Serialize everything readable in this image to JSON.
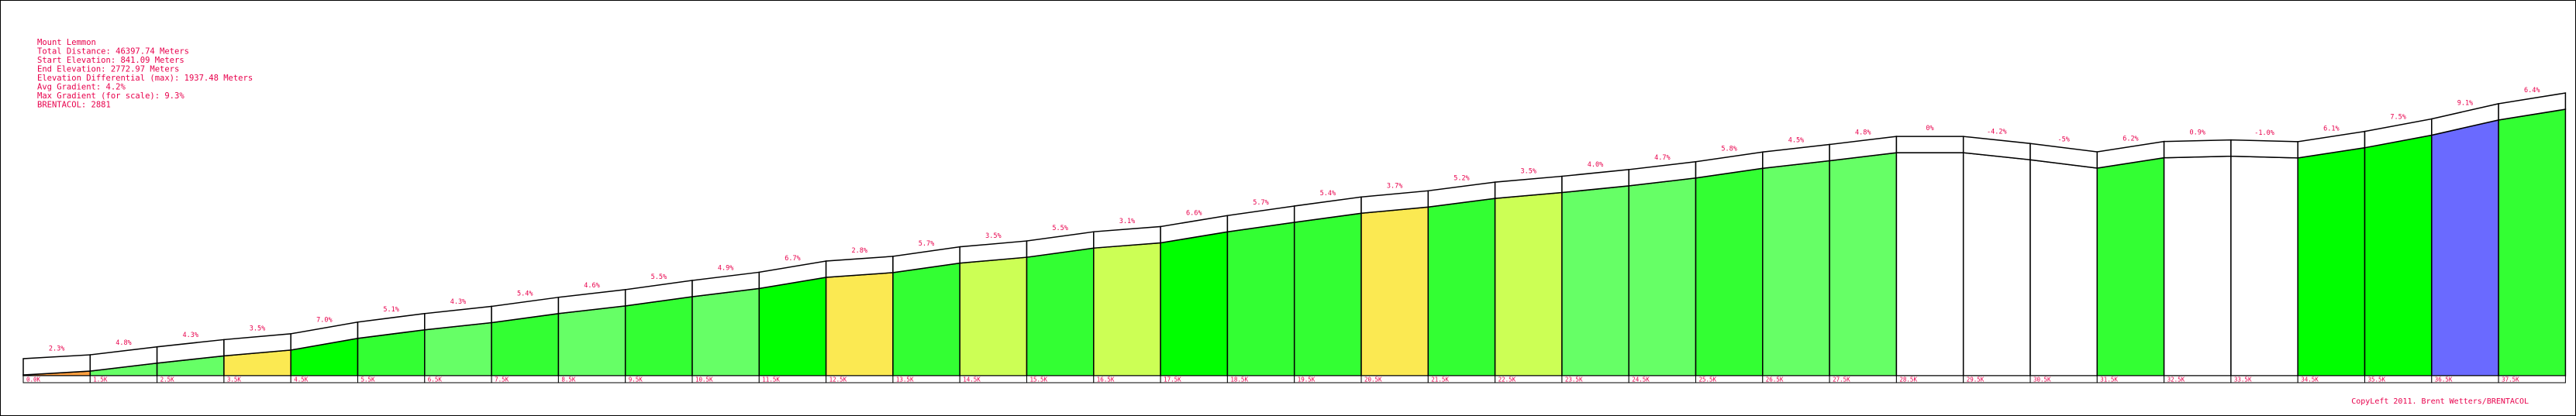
{
  "chart_data": {
    "type": "area",
    "info": [
      "Mount Lemmon",
      "Total Distance: 46397.74 Meters",
      "Start Elevation: 841.09 Meters",
      "End Elevation: 2772.97 Meters",
      "Elevation Differential (max): 1937.48 Meters",
      "Avg Gradient: 4.2%",
      "Max Gradient (for scale): 9.3%",
      "BRENTACOL: 2881"
    ],
    "segments": [
      {
        "label": "0.0K",
        "gradient": "2.3%",
        "color": "#ffa040"
      },
      {
        "label": "1.5K",
        "gradient": "4.8%",
        "color": "#66ff66"
      },
      {
        "label": "2.5K",
        "gradient": "4.3%",
        "color": "#66ff66"
      },
      {
        "label": "3.5K",
        "gradient": "3.5%",
        "color": "#fbe952"
      },
      {
        "label": "4.5K",
        "gradient": "7.0%",
        "color": "#00ff00"
      },
      {
        "label": "5.5K",
        "gradient": "5.1%",
        "color": "#33ff33"
      },
      {
        "label": "6.5K",
        "gradient": "4.3%",
        "color": "#66ff66"
      },
      {
        "label": "7.5K",
        "gradient": "5.4%",
        "color": "#33ff33"
      },
      {
        "label": "8.5K",
        "gradient": "4.6%",
        "color": "#66ff66"
      },
      {
        "label": "9.5K",
        "gradient": "5.5%",
        "color": "#33ff33"
      },
      {
        "label": "10.5K",
        "gradient": "4.9%",
        "color": "#66ff66"
      },
      {
        "label": "11.5K",
        "gradient": "6.7%",
        "color": "#00ff00"
      },
      {
        "label": "12.5K",
        "gradient": "2.8%",
        "color": "#fbe952"
      },
      {
        "label": "13.5K",
        "gradient": "5.7%",
        "color": "#33ff33"
      },
      {
        "label": "14.5K",
        "gradient": "3.5%",
        "color": "#ccff55"
      },
      {
        "label": "15.5K",
        "gradient": "5.5%",
        "color": "#33ff33"
      },
      {
        "label": "16.5K",
        "gradient": "3.1%",
        "color": "#ccff55"
      },
      {
        "label": "17.5K",
        "gradient": "6.6%",
        "color": "#00ff00"
      },
      {
        "label": "18.5K",
        "gradient": "5.7%",
        "color": "#33ff33"
      },
      {
        "label": "19.5K",
        "gradient": "5.4%",
        "color": "#33ff33"
      },
      {
        "label": "20.5K",
        "gradient": "3.7%",
        "color": "#fbe952"
      },
      {
        "label": "21.5K",
        "gradient": "5.2%",
        "color": "#33ff33"
      },
      {
        "label": "22.5K",
        "gradient": "3.5%",
        "color": "#ccff55"
      },
      {
        "label": "23.5K",
        "gradient": "4.0%",
        "color": "#66ff66"
      },
      {
        "label": "24.5K",
        "gradient": "4.7%",
        "color": "#66ff66"
      },
      {
        "label": "25.5K",
        "gradient": "5.8%",
        "color": "#33ff33"
      },
      {
        "label": "26.5K",
        "gradient": "4.5%",
        "color": "#66ff66"
      },
      {
        "label": "27.5K",
        "gradient": "4.8%",
        "color": "#66ff66"
      },
      {
        "label": "28.5K",
        "gradient": "0%",
        "color": "#ffffff"
      },
      {
        "label": "29.5K",
        "gradient": "-4.2%",
        "color": "#ffffff"
      },
      {
        "label": "30.5K",
        "gradient": "-5%",
        "color": "#ffffff"
      },
      {
        "label": "31.5K",
        "gradient": "6.2%",
        "color": "#33ff33"
      },
      {
        "label": "32.5K",
        "gradient": "0.9%",
        "color": "#ffffff"
      },
      {
        "label": "33.5K",
        "gradient": "-1.0%",
        "color": "#ffffff"
      },
      {
        "label": "34.5K",
        "gradient": "6.1%",
        "color": "#00ff00"
      },
      {
        "label": "35.5K",
        "gradient": "7.5%",
        "color": "#00ff00"
      },
      {
        "label": "36.5K",
        "gradient": "9.1%",
        "color": "#6a6aff"
      },
      {
        "label": "37.5K",
        "gradient": "6.4%",
        "color": "#33ff33"
      }
    ],
    "elevations": [
      841,
      864,
      912,
      955,
      990,
      1060,
      1111,
      1154,
      1208,
      1254,
      1309,
      1358,
      1425,
      1453,
      1510,
      1545,
      1600,
      1631,
      1697,
      1754,
      1808,
      1845,
      1897,
      1932,
      1972,
      2019,
      2077,
      2122,
      2170,
      2170,
      2128,
      2078,
      2140,
      2149,
      2139,
      2200,
      2275,
      2366,
      2430
    ],
    "elevation_range": [
      841.09,
      2772.97
    ],
    "copyright": "CopyLeft 2011. Brent Wetters/BRENTACOL"
  }
}
